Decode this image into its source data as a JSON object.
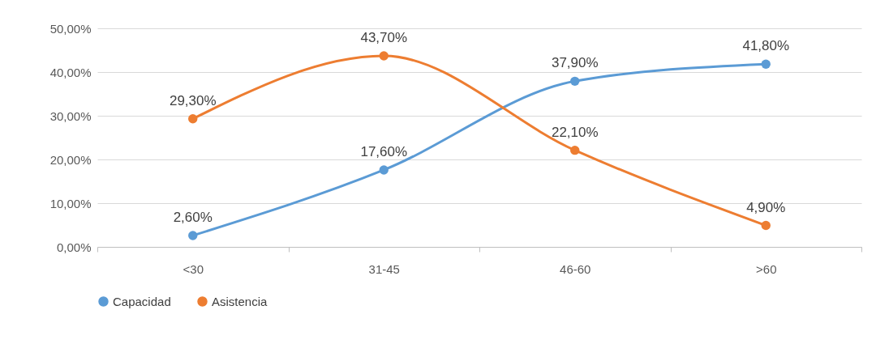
{
  "chart_data": {
    "type": "line",
    "categories": [
      "<30",
      "31-45",
      "46-60",
      ">60"
    ],
    "series": [
      {
        "name": "Capacidad",
        "color": "#5b9bd5",
        "values": [
          2.6,
          17.6,
          37.9,
          41.8
        ],
        "value_labels": [
          "2,60%",
          "17,60%",
          "37,90%",
          "41,80%"
        ]
      },
      {
        "name": "Asistencia",
        "color": "#ed7d31",
        "values": [
          29.3,
          43.7,
          22.1,
          4.9
        ],
        "value_labels": [
          "29,30%",
          "43,70%",
          "22,10%",
          "4,90%"
        ]
      }
    ],
    "ylim": [
      0,
      50
    ],
    "yticks": [
      {
        "value": 0,
        "label": "0,00%"
      },
      {
        "value": 10,
        "label": "10,00%"
      },
      {
        "value": 20,
        "label": "20,00%"
      },
      {
        "value": 30,
        "label": "30,00%"
      },
      {
        "value": 40,
        "label": "40,00%"
      },
      {
        "value": 50,
        "label": "50,00%"
      }
    ],
    "grid": "y",
    "legend": "bottom",
    "marker": "circle",
    "line_style": "solid"
  }
}
